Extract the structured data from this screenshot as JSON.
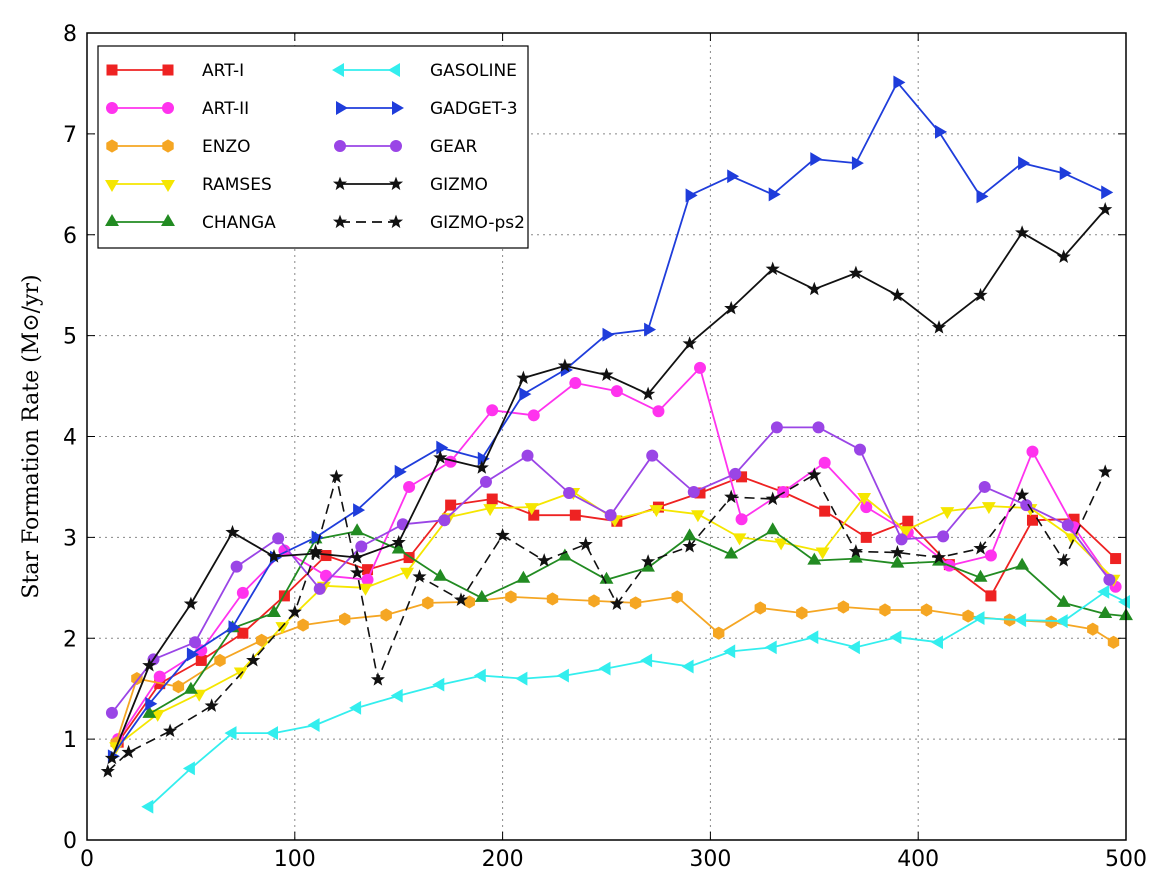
{
  "chart_data": {
    "type": "line",
    "title": "",
    "xlabel": "",
    "ylabel": "Star Formation Rate (M⊙/yr)",
    "xlim": [
      0,
      500
    ],
    "ylim": [
      0,
      8
    ],
    "x_ticks": [
      0,
      100,
      200,
      300,
      400,
      500
    ],
    "y_ticks": [
      0,
      1,
      2,
      3,
      4,
      5,
      6,
      7,
      8
    ],
    "x_tick_labels": [
      "0",
      "100",
      "200",
      "300",
      "400",
      "500"
    ],
    "y_tick_labels": [
      "0",
      "1",
      "2",
      "3",
      "4",
      "5",
      "6",
      "7",
      "8"
    ],
    "grid": true,
    "legend_position": "top-left",
    "legend_columns": 2,
    "series": [
      {
        "name": "ART-I",
        "color": "#ee2222",
        "marker": "square",
        "dash": "solid",
        "x": [
          15,
          35,
          55,
          75,
          95,
          115,
          135,
          155,
          175,
          195,
          215,
          235,
          255,
          275,
          295,
          315,
          335,
          355,
          375,
          395,
          415,
          435,
          455,
          475,
          495
        ],
        "y": [
          0.97,
          1.55,
          1.78,
          2.05,
          2.42,
          2.82,
          2.68,
          2.8,
          3.32,
          3.38,
          3.22,
          3.22,
          3.16,
          3.3,
          3.44,
          3.6,
          3.45,
          3.26,
          3.0,
          3.16,
          2.73,
          2.42,
          3.17,
          3.18,
          2.79
        ]
      },
      {
        "name": "ART-II",
        "color": "#ff33ee",
        "marker": "circle",
        "dash": "solid",
        "x": [
          15,
          35,
          55,
          75,
          95,
          115,
          135,
          155,
          175,
          195,
          215,
          235,
          255,
          275,
          295,
          315,
          335,
          355,
          375,
          395,
          415,
          435,
          455,
          475,
          495
        ],
        "y": [
          1.0,
          1.62,
          1.88,
          2.45,
          2.87,
          2.62,
          2.58,
          3.5,
          3.75,
          4.26,
          4.21,
          4.53,
          4.45,
          4.25,
          4.68,
          3.18,
          3.45,
          3.74,
          3.3,
          3.05,
          2.72,
          2.82,
          3.85,
          3.1,
          2.51
        ]
      },
      {
        "name": "ENZO",
        "color": "#f5a623",
        "marker": "hexagon",
        "dash": "solid",
        "x": [
          14,
          24,
          44,
          64,
          84,
          104,
          124,
          144,
          164,
          184,
          204,
          224,
          244,
          264,
          284,
          304,
          324,
          344,
          364,
          384,
          404,
          424,
          444,
          464,
          484,
          494
        ],
        "y": [
          0.96,
          1.6,
          1.52,
          1.78,
          1.98,
          2.13,
          2.19,
          2.23,
          2.35,
          2.36,
          2.41,
          2.39,
          2.37,
          2.35,
          2.41,
          2.05,
          2.3,
          2.25,
          2.31,
          2.28,
          2.28,
          2.22,
          2.18,
          2.16,
          2.09,
          1.96
        ]
      },
      {
        "name": "RAMSES",
        "color": "#f5e600",
        "marker": "triangle-down",
        "dash": "solid",
        "x": [
          14,
          34,
          54,
          74,
          94,
          114,
          134,
          154,
          174,
          194,
          214,
          234,
          254,
          274,
          294,
          314,
          334,
          354,
          374,
          394,
          414,
          434,
          454,
          474,
          494
        ],
        "y": [
          0.93,
          1.25,
          1.45,
          1.67,
          2.12,
          2.52,
          2.5,
          2.66,
          3.2,
          3.29,
          3.3,
          3.45,
          3.18,
          3.28,
          3.23,
          3.0,
          2.95,
          2.86,
          3.4,
          3.07,
          3.26,
          3.31,
          3.29,
          3.0,
          2.59
        ]
      },
      {
        "name": "CHANGA",
        "color": "#228b22",
        "marker": "triangle-up",
        "dash": "solid",
        "x": [
          30,
          50,
          70,
          90,
          110,
          130,
          150,
          170,
          190,
          210,
          230,
          250,
          270,
          290,
          310,
          330,
          350,
          370,
          390,
          410,
          430,
          450,
          470,
          490,
          500
        ],
        "y": [
          1.25,
          1.49,
          2.1,
          2.25,
          2.98,
          3.06,
          2.88,
          2.61,
          2.4,
          2.59,
          2.81,
          2.58,
          2.7,
          3.01,
          2.83,
          3.07,
          2.77,
          2.79,
          2.74,
          2.76,
          2.6,
          2.72,
          2.35,
          2.24,
          2.22
        ]
      },
      {
        "name": "GASOLINE",
        "color": "#33eeee",
        "marker": "triangle-left",
        "dash": "solid",
        "x": [
          30,
          50,
          70,
          90,
          110,
          130,
          150,
          170,
          190,
          210,
          230,
          250,
          270,
          290,
          310,
          330,
          350,
          370,
          390,
          410,
          430,
          450,
          470,
          490,
          500
        ],
        "y": [
          0.33,
          0.71,
          1.06,
          1.06,
          1.14,
          1.31,
          1.43,
          1.54,
          1.63,
          1.6,
          1.63,
          1.7,
          1.78,
          1.72,
          1.87,
          1.91,
          2.01,
          1.91,
          2.01,
          1.96,
          2.2,
          2.18,
          2.17,
          2.46,
          2.36
        ]
      },
      {
        "name": "GADGET-3",
        "color": "#1f3ddb",
        "marker": "triangle-right",
        "dash": "solid",
        "x": [
          12,
          30,
          50,
          70,
          90,
          110,
          130,
          150,
          170,
          190,
          210,
          230,
          250,
          270,
          290,
          310,
          330,
          350,
          370,
          390,
          410,
          430,
          450,
          470,
          490
        ],
        "y": [
          0.83,
          1.35,
          1.84,
          2.11,
          2.8,
          3.0,
          3.27,
          3.65,
          3.89,
          3.78,
          4.42,
          4.66,
          5.01,
          5.06,
          6.39,
          6.58,
          6.4,
          6.75,
          6.71,
          7.51,
          7.02,
          6.38,
          6.71,
          6.61,
          6.42
        ]
      },
      {
        "name": "GEAR",
        "color": "#9a45e6",
        "marker": "circle",
        "dash": "solid",
        "x": [
          12,
          32,
          52,
          72,
          92,
          112,
          132,
          152,
          172,
          192,
          212,
          232,
          252,
          272,
          292,
          312,
          332,
          352,
          372,
          392,
          412,
          432,
          452,
          472,
          492
        ],
        "y": [
          1.26,
          1.79,
          1.96,
          2.71,
          2.99,
          2.49,
          2.91,
          3.13,
          3.17,
          3.55,
          3.81,
          3.44,
          3.22,
          3.81,
          3.45,
          3.63,
          4.09,
          4.09,
          3.87,
          2.98,
          3.01,
          3.5,
          3.32,
          3.12,
          2.58
        ]
      },
      {
        "name": "GIZMO",
        "color": "#111111",
        "marker": "star",
        "dash": "solid",
        "x": [
          12,
          30,
          50,
          70,
          90,
          110,
          130,
          150,
          170,
          190,
          210,
          230,
          250,
          270,
          290,
          310,
          330,
          350,
          370,
          390,
          410,
          430,
          450,
          470,
          490
        ],
        "y": [
          0.81,
          1.73,
          2.34,
          3.05,
          2.81,
          2.84,
          2.8,
          2.95,
          3.79,
          3.69,
          4.58,
          4.7,
          4.61,
          4.42,
          4.92,
          5.27,
          5.66,
          5.46,
          5.62,
          5.4,
          5.08,
          5.4,
          6.02,
          5.78,
          6.25
        ]
      },
      {
        "name": "GIZMO-ps2",
        "color": "#111111",
        "marker": "star",
        "dash": "dashed",
        "x": [
          10,
          20,
          40,
          60,
          80,
          100,
          110,
          120,
          130,
          140,
          160,
          180,
          200,
          220,
          240,
          255,
          270,
          290,
          310,
          330,
          350,
          370,
          390,
          410,
          430,
          450,
          470,
          490
        ],
        "y": [
          0.68,
          0.87,
          1.08,
          1.33,
          1.78,
          2.26,
          2.86,
          3.6,
          2.65,
          1.59,
          2.61,
          2.38,
          3.02,
          2.77,
          2.93,
          2.34,
          2.76,
          2.91,
          3.4,
          3.38,
          3.62,
          2.86,
          2.85,
          2.8,
          2.89,
          3.42,
          2.77,
          3.65
        ]
      }
    ]
  }
}
